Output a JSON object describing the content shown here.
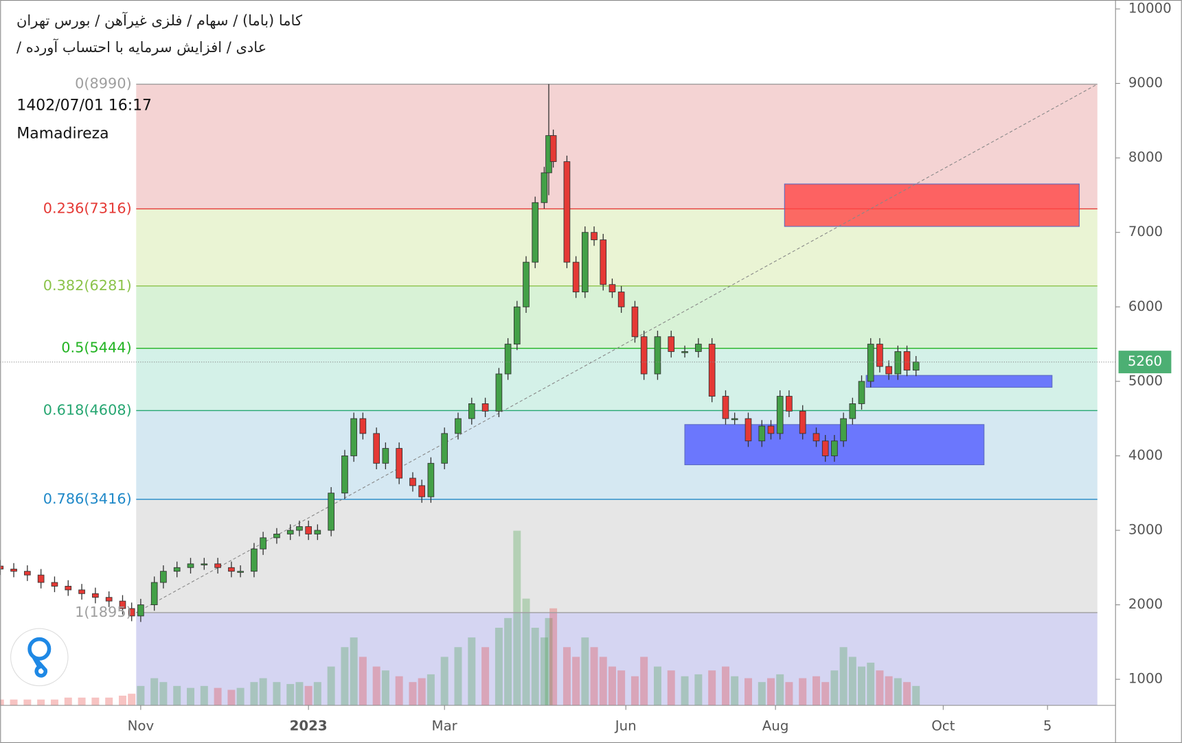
{
  "chart_data": {
    "type": "candlestick",
    "title_lines": [
      "کاما (باما) / سهام / فلزی غیرآهن / بورس تهران",
      "عادی / افزایش سرمایه با احتساب آورده /"
    ],
    "annotations": [
      "1402/07/01 16:17",
      "Mamadireza"
    ],
    "xlim": [
      0,
      246
    ],
    "xticks": [
      {
        "value": 31,
        "label": "Nov"
      },
      {
        "value": 68,
        "label": "2023"
      },
      {
        "value": 98,
        "label": "Mar"
      },
      {
        "value": 138,
        "label": "Jun"
      },
      {
        "value": 171,
        "label": "Aug"
      },
      {
        "value": 208,
        "label": "Oct"
      },
      {
        "value": 231,
        "label": "5"
      }
    ],
    "ylim": [
      650,
      10120
    ],
    "yticks": [
      1000,
      2000,
      3000,
      4000,
      5000,
      6000,
      7000,
      8000,
      9000,
      10000
    ],
    "up_color": "#43a047",
    "down_color": "#e53935",
    "x": [
      0,
      3,
      6,
      9,
      12,
      15,
      18,
      21,
      24,
      27,
      29,
      31,
      34,
      36,
      39,
      42,
      45,
      48,
      51,
      53,
      56,
      58,
      61,
      64,
      66,
      68,
      70,
      73,
      76,
      78,
      80,
      83,
      85,
      88,
      91,
      93,
      95,
      98,
      101,
      104,
      107,
      110,
      112,
      114,
      116,
      118,
      120,
      121,
      122,
      125,
      127,
      129,
      131,
      133,
      135,
      137,
      140,
      142,
      145,
      148,
      151,
      154,
      157,
      160,
      162,
      165,
      168,
      170,
      172,
      174,
      177,
      180,
      182,
      184,
      186,
      188,
      190,
      192,
      194,
      196,
      198,
      200,
      202
    ],
    "open": [
      2520,
      2480,
      2450,
      2400,
      2300,
      2250,
      2200,
      2150,
      2100,
      2050,
      1950,
      1850,
      2000,
      2300,
      2450,
      2500,
      2550,
      2550,
      2500,
      2450,
      2450,
      2750,
      2900,
      2950,
      3000,
      3050,
      2950,
      3000,
      3500,
      4000,
      4500,
      4300,
      3900,
      4100,
      3700,
      3600,
      3450,
      3900,
      4300,
      4500,
      4700,
      4600,
      5100,
      5500,
      6000,
      6600,
      7400,
      7800,
      8300,
      7950,
      6600,
      6200,
      7000,
      6900,
      6300,
      6200,
      6000,
      5600,
      5100,
      5600,
      5400,
      5400,
      5500,
      4800,
      4500,
      4500,
      4200,
      4400,
      4300,
      4800,
      4600,
      4300,
      4200,
      4000,
      4200,
      4500,
      4700,
      5000,
      5500,
      5200,
      5100,
      5400,
      5150
    ],
    "high": [
      2600,
      2560,
      2530,
      2480,
      2380,
      2330,
      2280,
      2230,
      2180,
      2130,
      2030,
      2080,
      2380,
      2530,
      2580,
      2630,
      2630,
      2630,
      2580,
      2530,
      2830,
      2980,
      3030,
      3080,
      3130,
      3130,
      3080,
      3580,
      4080,
      4580,
      4580,
      4380,
      4180,
      4180,
      3780,
      3680,
      3980,
      4380,
      4580,
      4780,
      4780,
      5180,
      5580,
      6080,
      6680,
      7480,
      7880,
      8990,
      8380,
      8030,
      6680,
      7080,
      7080,
      6980,
      6380,
      6280,
      6080,
      5680,
      5680,
      5680,
      5480,
      5580,
      5580,
      4880,
      4580,
      4580,
      4480,
      4480,
      4880,
      4880,
      4680,
      4380,
      4280,
      4280,
      4580,
      4780,
      5080,
      5580,
      5580,
      5280,
      5480,
      5480,
      5340
    ],
    "low": [
      2400,
      2370,
      2320,
      2220,
      2170,
      2120,
      2070,
      2020,
      1970,
      1870,
      1780,
      1770,
      1920,
      2220,
      2370,
      2420,
      2470,
      2420,
      2370,
      2370,
      2370,
      2670,
      2820,
      2870,
      2920,
      2870,
      2870,
      2920,
      3420,
      3920,
      4220,
      3820,
      3820,
      3620,
      3520,
      3370,
      3370,
      3820,
      4220,
      4420,
      4520,
      4520,
      5020,
      5420,
      5920,
      6520,
      7320,
      7500,
      7870,
      6520,
      6120,
      6120,
      6820,
      6220,
      6120,
      5920,
      5520,
      5020,
      5020,
      5320,
      5320,
      5320,
      4720,
      4420,
      4420,
      4120,
      4120,
      4220,
      4220,
      4520,
      4220,
      4120,
      3920,
      3920,
      4120,
      4420,
      4620,
      4920,
      5120,
      5020,
      5020,
      5070,
      5070
    ],
    "close": [
      2480,
      2450,
      2400,
      2300,
      2250,
      2200,
      2150,
      2100,
      2050,
      1950,
      1850,
      2000,
      2300,
      2450,
      2500,
      2550,
      2550,
      2500,
      2450,
      2450,
      2750,
      2900,
      2950,
      3000,
      3050,
      2950,
      3000,
      3500,
      4000,
      4500,
      4300,
      3900,
      4100,
      3700,
      3600,
      3450,
      3900,
      4300,
      4500,
      4700,
      4600,
      5100,
      5500,
      6000,
      6600,
      7400,
      7800,
      8300,
      7950,
      6600,
      6200,
      7000,
      6900,
      6300,
      6200,
      6000,
      5600,
      5100,
      5600,
      5400,
      5400,
      5500,
      4800,
      4500,
      4500,
      4200,
      4400,
      4300,
      4800,
      4600,
      4300,
      4200,
      4000,
      4200,
      4500,
      4700,
      5000,
      5500,
      5200,
      5100,
      5400,
      5150,
      5260
    ],
    "volume": [
      3,
      3,
      3,
      3,
      3,
      4,
      4,
      4,
      4,
      5,
      6,
      10,
      14,
      12,
      10,
      9,
      10,
      9,
      8,
      9,
      12,
      14,
      12,
      11,
      12,
      10,
      12,
      20,
      30,
      35,
      25,
      20,
      18,
      15,
      12,
      14,
      16,
      25,
      30,
      35,
      30,
      40,
      45,
      90,
      55,
      40,
      35,
      45,
      50,
      30,
      25,
      35,
      30,
      25,
      20,
      18,
      15,
      25,
      20,
      18,
      15,
      16,
      18,
      20,
      15,
      14,
      12,
      14,
      16,
      12,
      14,
      15,
      12,
      18,
      30,
      25,
      20,
      22,
      18,
      15,
      14,
      12,
      10
    ],
    "fib_x": [
      30,
      242
    ],
    "fib_levels": [
      {
        "label": "0(8990)",
        "value": 8990,
        "color": "#9e9e9e",
        "fill": "#f4d3d3"
      },
      {
        "label": "0.236(7316)",
        "value": 7316,
        "color": "#e53935",
        "fill": "#eaf4d4"
      },
      {
        "label": "0.382(6281)",
        "value": 6281,
        "color": "#8bc34a",
        "fill": "#d8f2d6"
      },
      {
        "label": "0.5(5444)",
        "value": 5444,
        "color": "#22b322",
        "fill": "#d4f1e8"
      },
      {
        "label": "0.618(4608)",
        "value": 4608,
        "color": "#26a671",
        "fill": "#d5e8f2"
      },
      {
        "label": "0.786(3416)",
        "value": 3416,
        "color": "#1e88c8",
        "fill": "#e6e6e6"
      },
      {
        "label": "1(1895)",
        "value": 1895,
        "color": "#9e9e9e",
        "fill": "#d5d5f2"
      }
    ],
    "zones": [
      {
        "x": [
          173,
          238
        ],
        "y": [
          7080,
          7650
        ],
        "color": "rgba(255,70,70,0.8)"
      },
      {
        "x": [
          151,
          217
        ],
        "y": [
          3880,
          4420
        ],
        "color": "rgba(80,90,255,0.8)"
      },
      {
        "x": [
          191,
          232
        ],
        "y": [
          4920,
          5080
        ],
        "color": "rgba(80,90,255,0.8)"
      }
    ],
    "last_price": 5260,
    "last_price_color": "#4caf73"
  }
}
